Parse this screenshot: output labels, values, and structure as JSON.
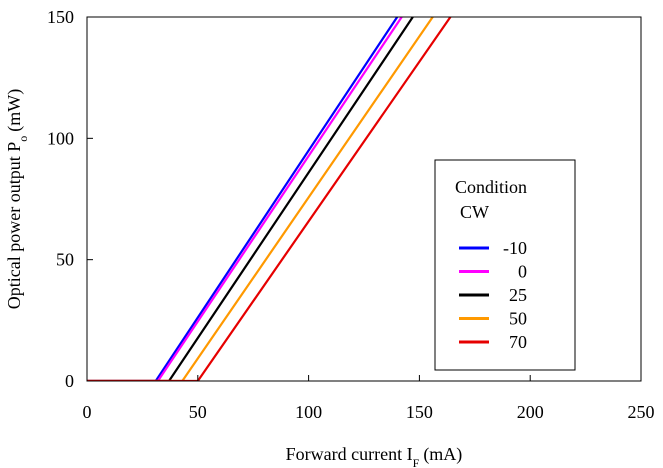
{
  "chart_data": {
    "type": "line",
    "title": "",
    "xlabel": {
      "main": "Forward current I",
      "sub": "F",
      "unit": "(mA)"
    },
    "ylabel": {
      "main": "Optical power output P",
      "sub": "o",
      "unit": "(mW)"
    },
    "xlim": [
      0,
      250
    ],
    "ylim": [
      0,
      150
    ],
    "x_ticks": [
      "0",
      "50",
      "100",
      "150",
      "200",
      "250"
    ],
    "y_ticks": [
      "0",
      "50",
      "100",
      "150"
    ],
    "grid": false,
    "legend": {
      "placement": "right-middle",
      "title_line1": "Condition",
      "title_line2": "CW"
    },
    "series": [
      {
        "name": "-10",
        "color": "#0000ff",
        "x": [
          0,
          31,
          140
        ],
        "y": [
          0,
          0,
          150
        ]
      },
      {
        "name": "0",
        "color": "#ff00ff",
        "x": [
          0,
          32,
          142
        ],
        "y": [
          0,
          0,
          150
        ]
      },
      {
        "name": "25",
        "color": "#000000",
        "x": [
          0,
          37,
          147
        ],
        "y": [
          0,
          0,
          150
        ]
      },
      {
        "name": "50",
        "color": "#ff9900",
        "x": [
          0,
          43,
          156
        ],
        "y": [
          0,
          0,
          150
        ]
      },
      {
        "name": "70",
        "color": "#e60000",
        "x": [
          0,
          50,
          164
        ],
        "y": [
          0,
          0,
          150
        ]
      }
    ]
  }
}
